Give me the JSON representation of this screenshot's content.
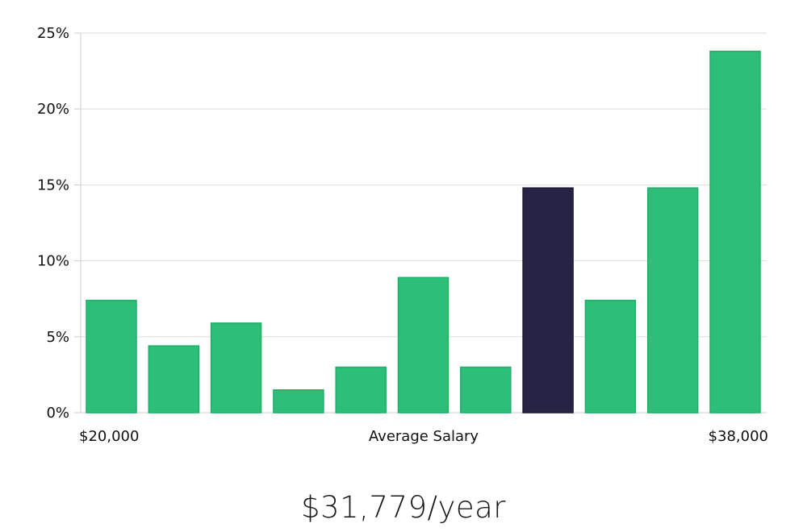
{
  "chart_data": {
    "type": "bar",
    "title": "",
    "xlabel": "Average Salary",
    "ylabel": "",
    "x_range_labels": {
      "start": "$20,000",
      "end": "$38,000"
    },
    "ylim": [
      0,
      25
    ],
    "y_ticks": [
      0,
      5,
      10,
      15,
      20,
      25
    ],
    "y_tick_labels": [
      "0%",
      "5%",
      "10%",
      "15%",
      "20%",
      "25%"
    ],
    "values": [
      7.4,
      4.4,
      5.9,
      1.5,
      3.0,
      8.9,
      3.0,
      14.8,
      7.4,
      14.8,
      23.8
    ],
    "highlight_index": 7,
    "bar_color": "#2bbf77",
    "highlight_color": "#262445",
    "grid": true,
    "grid_color": "#dddddd"
  },
  "summary": {
    "salary_text": "$31,779/year"
  }
}
